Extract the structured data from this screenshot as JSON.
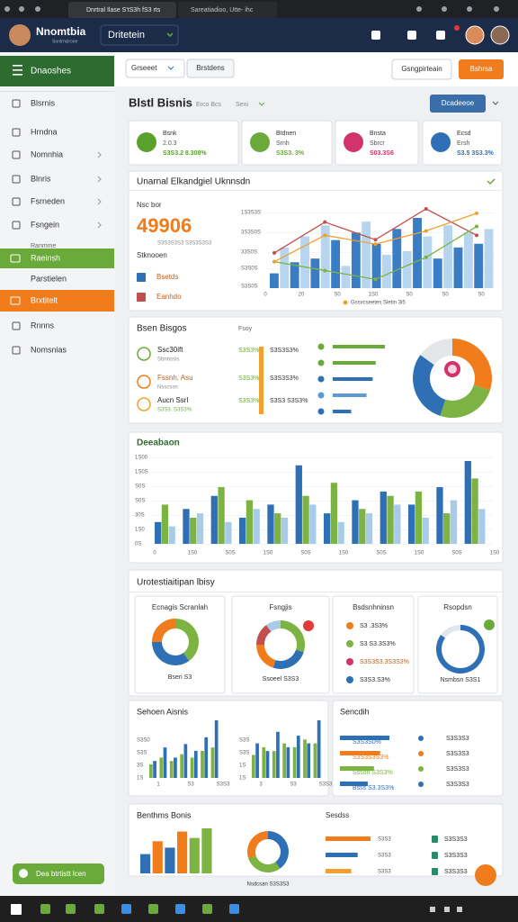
{
  "browser": {
    "tabs": [
      "Dnrtral Ilase S'tS3h fS3 rts",
      "Sareatiadioo, Utte- ihc"
    ]
  },
  "header": {
    "brand": "Nnomtbia",
    "brand_sub": "Sontrnsirooe",
    "workspace": "Dritetein"
  },
  "sidebar": {
    "title": "Dnaoshes",
    "items": [
      "Blsrnis",
      "Hrndna",
      "Nomnhia",
      "Blnris",
      "Fsrneden",
      "Fsngein"
    ],
    "group_label": "Ranmme",
    "active": "Raeinsh",
    "items2": [
      "Parstielen"
    ],
    "highlight": "Brxtitelt",
    "items3": [
      "Rnnns",
      "Nomsnias"
    ],
    "cta": "Dea btrtistt lcen"
  },
  "toolbar": {
    "filter": "Grseeet",
    "tab": "Brstdens",
    "secondary": "Gsngpirteain",
    "primary": "Bshrsa"
  },
  "page": {
    "title": "Blstl Bisnis",
    "meta": [
      "Erco Bcs",
      "Seni"
    ],
    "action": "Dcadeeoe"
  },
  "kpis": [
    {
      "label": "Bsnk",
      "value": "2.0.3",
      "sub": "S3S3.2 8.308%",
      "color": "#5aa02c"
    },
    {
      "label": "Btdnen",
      "value": "Srnh",
      "sub": "S3S3. 3%",
      "color": "#6aaa3a"
    },
    {
      "label": "Bnsta",
      "value": "Sbrcr",
      "sub": "S03.3S6",
      "color": "#d0346a"
    },
    {
      "label": "Ecsd",
      "value": "Ersh",
      "sub": "S3.5 3S3.3%",
      "color": "#2f6fb5"
    }
  ],
  "overview": {
    "title": "Unarnal Elkandgiel Uknnsdn",
    "kicker": "Nsc bor",
    "big": "49906",
    "big_sub": "S3S3S3S3 S3S3S3S3",
    "items": [
      "Stknooen",
      "Bsetds",
      "Eanhdo"
    ],
    "y_labels": [
      "1S3S3S",
      "3S3S0S",
      "33S0S",
      "S3S0S",
      "S3S0S"
    ],
    "x_labels": [
      "0",
      "20",
      "S0",
      "1S0",
      "S0",
      "S0",
      "S0"
    ],
    "legend": "Gssvcseetes Sletin 3i5",
    "bar_colors": [
      "#3b7dc4",
      "#b7d5ee"
    ],
    "bars": [
      20,
      55,
      35,
      70,
      40,
      85,
      65,
      30,
      75,
      90,
      60,
      45,
      80,
      50,
      95,
      70,
      40,
      85,
      55,
      75,
      60,
      80
    ],
    "series": [
      {
        "color": "#c0504d",
        "values": [
          40,
          75,
          55,
          90,
          60
        ]
      },
      {
        "color": "#7cb342",
        "values": [
          30,
          20,
          10,
          35,
          70
        ]
      },
      {
        "color": "#f0a030",
        "values": [
          30,
          60,
          50,
          65,
          85
        ]
      }
    ]
  },
  "goals": {
    "title": "Bsen Bisgos",
    "col": "Fsoy",
    "rows": [
      {
        "name": "Ssc30ift",
        "sub": "Sbnnssis",
        "pct": "S3S3%",
        "val": "S3S3S3%"
      },
      {
        "name": "Fssnh, Asu",
        "sub": "Nsscssn",
        "pct": "S3S3%",
        "val": "S3S3S3%"
      },
      {
        "name": "Aucn Ssrl",
        "sub": "S3S3. S3S3%",
        "pct": "S3S3%",
        "val": "S3S3 S3S3%"
      }
    ],
    "bars": [
      85,
      70,
      65,
      55,
      30
    ],
    "bar_colors": [
      "#6aaa3a",
      "#6aaa3a",
      "#2f6fb5",
      "#5b9bd5",
      "#2f6fb5"
    ],
    "donut": [
      30,
      25,
      30,
      15
    ],
    "donut_colors": [
      "#f07c1b",
      "#7cb342",
      "#2f6fb5",
      "#e4e6ea"
    ]
  },
  "activity": {
    "title": "Deeabaon",
    "y_labels": [
      "1S00",
      "1S0S",
      "S0S",
      "S0S",
      "30S",
      "1S0",
      "0S"
    ],
    "x_labels": [
      "0",
      "1S0",
      "S0S",
      "1S0",
      "S0S",
      "1S0",
      "S0S",
      "1S0",
      "S0S",
      "1S0"
    ],
    "series": [
      {
        "color": "#2f6fb5",
        "values": [
          25,
          40,
          55,
          30,
          45,
          90,
          35,
          50,
          60,
          45,
          65,
          95
        ]
      },
      {
        "color": "#7cb342",
        "values": [
          45,
          30,
          65,
          50,
          35,
          55,
          70,
          40,
          55,
          60,
          35,
          75
        ]
      },
      {
        "color": "#a8cbe8",
        "values": [
          20,
          35,
          25,
          40,
          30,
          45,
          25,
          35,
          45,
          30,
          50,
          40
        ]
      }
    ]
  },
  "breakdown": {
    "title": "Urotestiaitipan lbisy",
    "cards": [
      {
        "title": "Ecnagis Scranlah",
        "caption": "Bseri S3",
        "values": [
          40,
          35,
          25
        ],
        "colors": [
          "#7cb342",
          "#2f6fb5",
          "#f07c1b"
        ]
      },
      {
        "title": "Fsngjis",
        "caption": "Ssoeel S3S3",
        "values": [
          30,
          25,
          20,
          15,
          10
        ],
        "colors": [
          "#7cb342",
          "#2f6fb5",
          "#f07c1b",
          "#c0504d",
          "#a8cbe8"
        ]
      },
      {
        "title": "Bsdsnhninsn",
        "rows": [
          "S3 .3S3%",
          "S3 S3.3S3%",
          "S3S3S3.3S3S3%",
          "S3S3.S3%"
        ]
      },
      {
        "title": "Rsopdsn",
        "caption": "Nsmbsn S3S1",
        "value": 85
      }
    ]
  },
  "analysis": {
    "title": "Sehoen Aisnis",
    "chart_a": {
      "y_labels": [
        "S3S0",
        "S3S",
        "3S",
        "1S"
      ],
      "x_labels": [
        "1",
        "S3",
        "S3S3"
      ],
      "series": [
        {
          "color": "#7cb342",
          "values": [
            20,
            30,
            25,
            35,
            30,
            40,
            45
          ]
        },
        {
          "color": "#2f6fb5",
          "values": [
            25,
            45,
            30,
            50,
            40,
            60,
            85
          ]
        }
      ]
    },
    "chart_b": {
      "y_labels": [
        "S3S",
        "S3S",
        "1S",
        "1S"
      ],
      "x_labels": [
        "3",
        "S3",
        "S3S3"
      ],
      "series": [
        {
          "color": "#7cb342",
          "values": [
            30,
            40,
            35,
            45,
            40,
            50,
            45
          ]
        },
        {
          "color": "#2f6fb5",
          "values": [
            45,
            35,
            60,
            40,
            55,
            45,
            75
          ]
        }
      ]
    }
  },
  "summary": {
    "title": "Sencdih",
    "rows": [
      {
        "label": "S3S3S0%",
        "bar": 80,
        "color": "#2f6fb5",
        "right": "S3S3S3"
      },
      {
        "label": "S3S3S3S3%",
        "bar": 65,
        "color": "#f07c1b",
        "right": "S3S3S3"
      },
      {
        "label": "Ssson S3S3%",
        "bar": 55,
        "color": "#7cb342",
        "right": "S3S3S3"
      },
      {
        "label": "Bsss S3.3S3%",
        "bar": 45,
        "color": "#2f6fb5",
        "right": "S3S3S3"
      }
    ]
  },
  "bottom": {
    "title": "Benthms Bonis",
    "bars": [
      30,
      50,
      40,
      65,
      55,
      70
    ],
    "bar_colors": [
      "#2f6fb5",
      "#f07c1b",
      "#2f6fb5",
      "#f07c1b",
      "#7cb342",
      "#7cb342"
    ],
    "donut": [
      40,
      30,
      30
    ],
    "donut_colors": [
      "#2f6fb5",
      "#7cb342",
      "#f07c1b"
    ],
    "caption": "Nsdcsan S3S3S3",
    "title2": "Sesdss",
    "hbars": [
      70,
      50,
      40
    ],
    "hbar_colors": [
      "#f07c1b",
      "#2f6fb5",
      "#f0a030"
    ],
    "hbar_labels": [
      "S3S3",
      "S3S3",
      "S3S3"
    ],
    "right": [
      "S3S3S3",
      "S3S3S3",
      "S3S3S3"
    ]
  }
}
